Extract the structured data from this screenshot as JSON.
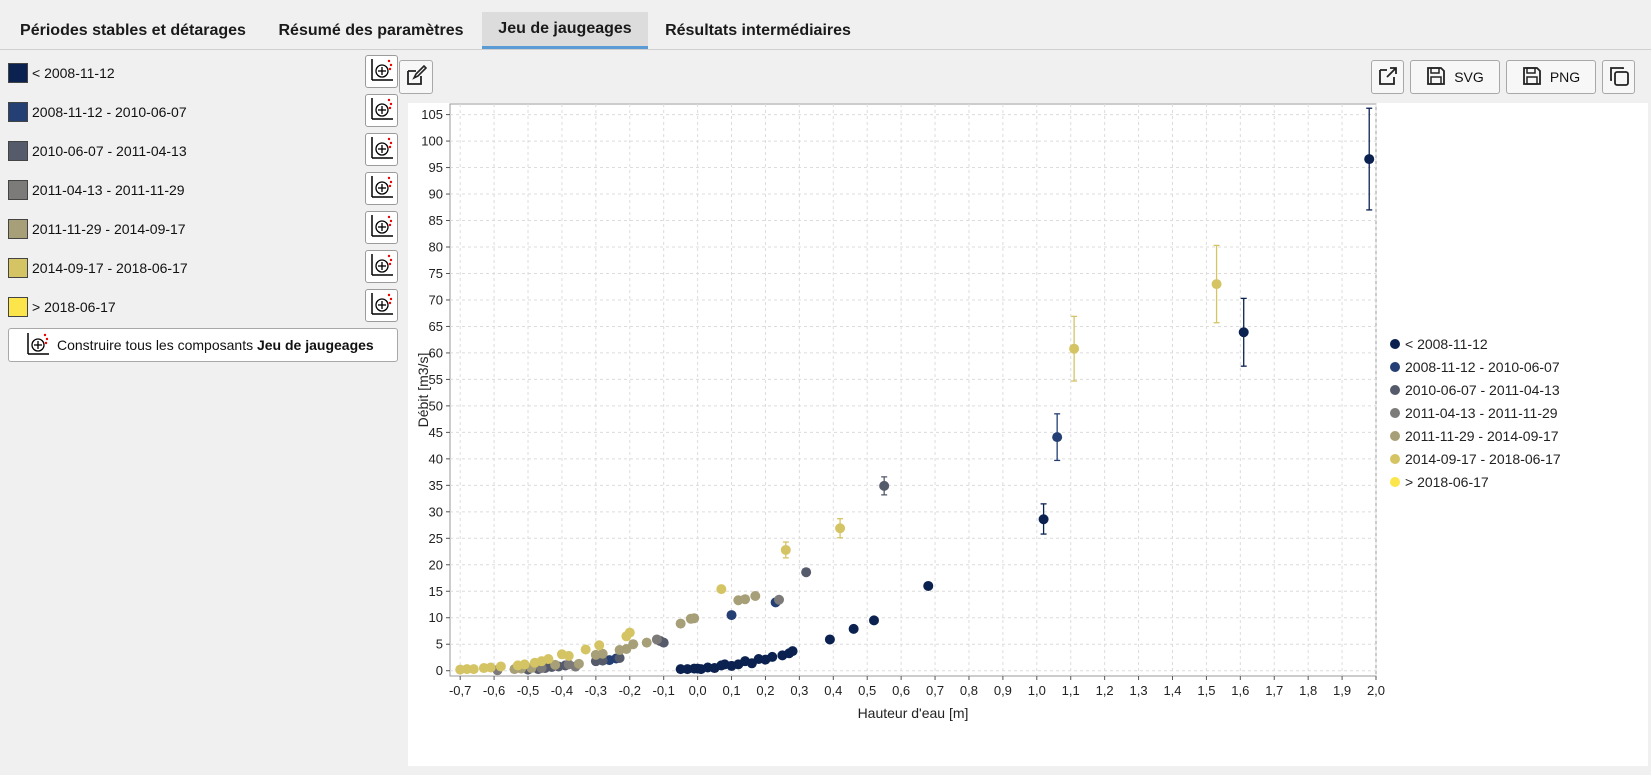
{
  "tabs": [
    {
      "label": "Périodes stables et détarages",
      "active": false
    },
    {
      "label": "Résumé des paramètres",
      "active": false
    },
    {
      "label": "Jeu de jaugeages",
      "active": true
    },
    {
      "label": "Résultats intermédiaires",
      "active": false
    }
  ],
  "periods": [
    {
      "label": "< 2008-11-12",
      "color": "#0b2150"
    },
    {
      "label": "2008-11-12 - 2010-06-07",
      "color": "#243f73"
    },
    {
      "label": "2010-06-07 - 2011-04-13",
      "color": "#565b6b"
    },
    {
      "label": "2011-04-13 - 2011-11-29",
      "color": "#7d7b79"
    },
    {
      "label": "2011-11-29 - 2014-09-17",
      "color": "#a69f78"
    },
    {
      "label": "2014-09-17 - 2018-06-17",
      "color": "#d5c464"
    },
    {
      "label": "> 2018-06-17",
      "color": "#fbe54a"
    }
  ],
  "build_all": {
    "prefix": "Construire tous les composants ",
    "bold": "Jeu de jaugeages"
  },
  "toolbar": {
    "svg_label": "SVG",
    "png_label": "PNG"
  },
  "icons": {
    "edit": "edit-icon",
    "open_external": "open-external-icon",
    "save": "save-icon",
    "copy": "copy-icon",
    "build_component": "build-component-icon"
  },
  "chart_data": {
    "type": "scatter",
    "xlabel": "Hauteur d'eau [m]",
    "ylabel": "Débit [m3/s]",
    "xlim": [
      -0.73,
      2.0
    ],
    "ylim": [
      -1,
      107
    ],
    "xticks": [
      -0.7,
      -0.6,
      -0.5,
      -0.4,
      -0.3,
      -0.2,
      -0.1,
      0.0,
      0.1,
      0.2,
      0.3,
      0.4,
      0.5,
      0.6,
      0.7,
      0.8,
      0.9,
      1.0,
      1.1,
      1.2,
      1.3,
      1.4,
      1.5,
      1.6,
      1.7,
      1.8,
      1.9,
      2.0
    ],
    "xtick_labels": [
      "-0,7",
      "-0,6",
      "-0,5",
      "-0,4",
      "-0,3",
      "-0,2",
      "-0,1",
      "0,0",
      "0,1",
      "0,2",
      "0,3",
      "0,4",
      "0,5",
      "0,6",
      "0,7",
      "0,8",
      "0,9",
      "1,0",
      "1,1",
      "1,2",
      "1,3",
      "1,4",
      "1,5",
      "1,6",
      "1,7",
      "1,8",
      "1,9",
      "2,0"
    ],
    "yticks": [
      0,
      5,
      10,
      15,
      20,
      25,
      30,
      35,
      40,
      45,
      50,
      55,
      60,
      65,
      70,
      75,
      80,
      85,
      90,
      95,
      100,
      105
    ],
    "grid": true,
    "legend_position": "right",
    "series": [
      {
        "name": "< 2008-11-12",
        "color": "#0b2150",
        "points": [
          [
            -0.05,
            0.3
          ],
          [
            -0.03,
            0.3
          ],
          [
            -0.01,
            0.4
          ],
          [
            0.0,
            0.4
          ],
          [
            0.01,
            0.3
          ],
          [
            0.03,
            0.6
          ],
          [
            0.05,
            0.5
          ],
          [
            0.07,
            1.0
          ],
          [
            0.08,
            1.2
          ],
          [
            0.1,
            0.9
          ],
          [
            0.12,
            1.2
          ],
          [
            0.14,
            1.8
          ],
          [
            0.16,
            1.4
          ],
          [
            0.18,
            2.2
          ],
          [
            0.2,
            2.1
          ],
          [
            0.22,
            2.6
          ],
          [
            0.25,
            2.9
          ],
          [
            0.27,
            3.3
          ],
          [
            0.28,
            3.7
          ],
          [
            0.39,
            5.9
          ],
          [
            0.46,
            7.9
          ],
          [
            0.52,
            9.5
          ],
          [
            0.68,
            16.0
          ],
          [
            1.02,
            28.6
          ],
          [
            1.61,
            63.9
          ],
          [
            1.98,
            96.6
          ]
        ],
        "errors": [
          [
            1.02,
            25.8,
            31.5
          ],
          [
            1.61,
            57.5,
            70.3
          ],
          [
            1.98,
            87.0,
            106.2
          ]
        ]
      },
      {
        "name": "2008-11-12 - 2010-06-07",
        "color": "#243f73",
        "points": [
          [
            -0.26,
            2.0
          ],
          [
            -0.24,
            2.3
          ],
          [
            0.1,
            10.5
          ],
          [
            0.23,
            12.9
          ],
          [
            1.06,
            44.1
          ]
        ],
        "errors": [
          [
            1.06,
            39.7,
            48.5
          ]
        ]
      },
      {
        "name": "2010-06-07 - 2011-04-13",
        "color": "#565b6b",
        "points": [
          [
            -0.5,
            0.2
          ],
          [
            -0.47,
            0.3
          ],
          [
            -0.45,
            0.5
          ],
          [
            -0.43,
            0.7
          ],
          [
            -0.41,
            0.8
          ],
          [
            -0.39,
            1.0
          ],
          [
            -0.36,
            0.8
          ],
          [
            -0.3,
            1.8
          ],
          [
            -0.28,
            1.9
          ],
          [
            -0.23,
            2.4
          ],
          [
            -0.11,
            5.6
          ],
          [
            -0.1,
            5.3
          ],
          [
            0.32,
            18.6
          ],
          [
            0.55,
            34.9
          ]
        ],
        "errors": [
          [
            0.55,
            33.2,
            36.6
          ]
        ]
      },
      {
        "name": "2011-04-13 - 2011-11-29",
        "color": "#7d7b79",
        "points": [
          [
            -0.59,
            0.1
          ],
          [
            -0.46,
            0.5
          ],
          [
            -0.38,
            1.2
          ],
          [
            -0.36,
            0.8
          ],
          [
            -0.12,
            5.9
          ],
          [
            0.24,
            13.4
          ]
        ]
      },
      {
        "name": "2011-11-29 - 2014-09-17",
        "color": "#a69f78",
        "points": [
          [
            -0.54,
            0.3
          ],
          [
            -0.52,
            0.4
          ],
          [
            -0.49,
            0.5
          ],
          [
            -0.42,
            1.1
          ],
          [
            -0.35,
            1.3
          ],
          [
            -0.3,
            3.0
          ],
          [
            -0.28,
            3.2
          ],
          [
            -0.23,
            3.9
          ],
          [
            -0.21,
            4.1
          ],
          [
            -0.19,
            5.0
          ],
          [
            -0.15,
            5.3
          ],
          [
            -0.05,
            8.9
          ],
          [
            -0.02,
            9.8
          ],
          [
            -0.01,
            9.9
          ],
          [
            0.12,
            13.3
          ],
          [
            0.14,
            13.5
          ],
          [
            0.17,
            14.1
          ]
        ]
      },
      {
        "name": "2014-09-17 - 2018-06-17",
        "color": "#d5c464",
        "points": [
          [
            -0.7,
            0.2
          ],
          [
            -0.68,
            0.3
          ],
          [
            -0.66,
            0.3
          ],
          [
            -0.63,
            0.5
          ],
          [
            -0.61,
            0.6
          ],
          [
            -0.58,
            0.8
          ],
          [
            -0.53,
            1.0
          ],
          [
            -0.51,
            1.2
          ],
          [
            -0.48,
            1.5
          ],
          [
            -0.46,
            1.8
          ],
          [
            -0.44,
            2.2
          ],
          [
            -0.4,
            3.1
          ],
          [
            -0.38,
            2.8
          ],
          [
            -0.33,
            4.0
          ],
          [
            -0.29,
            4.8
          ],
          [
            -0.21,
            6.5
          ],
          [
            -0.2,
            7.2
          ],
          [
            0.07,
            15.4
          ],
          [
            0.26,
            22.8
          ],
          [
            0.42,
            26.9
          ],
          [
            1.11,
            60.8
          ],
          [
            1.53,
            73.0
          ]
        ],
        "errors": [
          [
            0.26,
            21.3,
            24.3
          ],
          [
            0.42,
            25.1,
            28.7
          ],
          [
            1.11,
            54.7,
            66.9
          ],
          [
            1.53,
            65.7,
            80.3
          ]
        ]
      },
      {
        "name": "> 2018-06-17",
        "color": "#fbe54a",
        "points": []
      }
    ]
  }
}
